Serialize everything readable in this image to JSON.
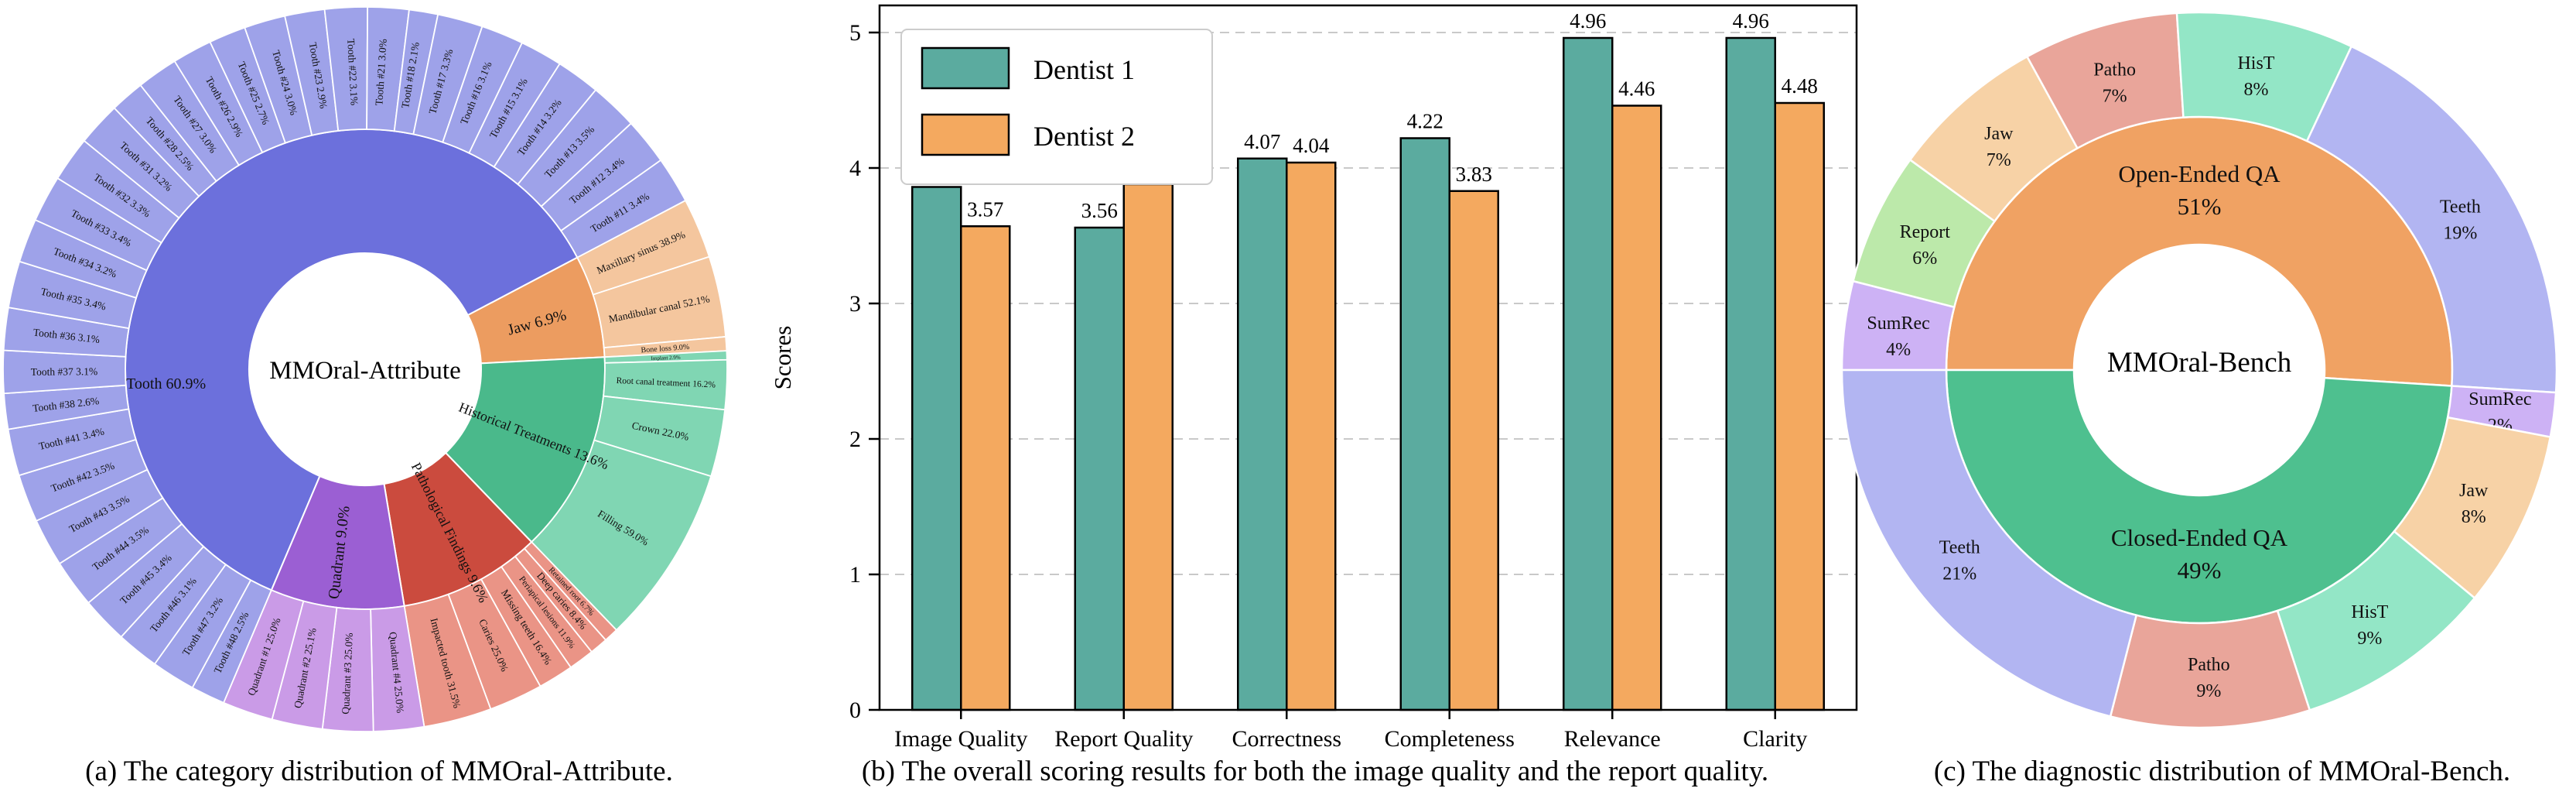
{
  "figure": {
    "captions": {
      "a": "(a) The category distribution of MMOral-Attribute.",
      "b": "(b) The overall scoring results for both the image quality and the report quality.",
      "c": "(c) The diagnostic distribution of MMOral-Bench."
    }
  },
  "chart_data": [
    {
      "id": "sunburst-attribute",
      "type": "pie",
      "subtype": "sunburst",
      "center_label": "MMOral-Attribute",
      "start_angle_deg": 203,
      "clockwise": true,
      "categories": [
        {
          "label": "Tooth",
          "pct": 60.9,
          "color": "#6C70DC",
          "child_color": "#9EA2E9",
          "children": [
            [
              "Tooth #48",
              2.5
            ],
            [
              "Tooth #47",
              3.2
            ],
            [
              "Tooth #46",
              3.1
            ],
            [
              "Tooth #45",
              3.4
            ],
            [
              "Tooth #44",
              3.5
            ],
            [
              "Tooth #43",
              3.5
            ],
            [
              "Tooth #42",
              3.5
            ],
            [
              "Tooth #41",
              3.4
            ],
            [
              "Tooth #38",
              2.6
            ],
            [
              "Tooth #37",
              3.1
            ],
            [
              "Tooth #36",
              3.1
            ],
            [
              "Tooth #35",
              3.4
            ],
            [
              "Tooth #34",
              3.2
            ],
            [
              "Tooth #33",
              3.4
            ],
            [
              "Tooth #32",
              3.3
            ],
            [
              "Tooth #31",
              3.2
            ],
            [
              "Tooth #28",
              2.5
            ],
            [
              "Tooth #27",
              3.0
            ],
            [
              "Tooth #26",
              2.9
            ],
            [
              "Tooth #25",
              2.7
            ],
            [
              "Tooth #24",
              3.0
            ],
            [
              "Tooth #23",
              2.9
            ],
            [
              "Tooth #22",
              3.1
            ],
            [
              "Tooth #21",
              3.0
            ],
            [
              "Tooth #18",
              2.1
            ],
            [
              "Tooth #17",
              3.3
            ],
            [
              "Tooth #16",
              3.1
            ],
            [
              "Tooth #15",
              3.1
            ],
            [
              "Tooth #14",
              3.2
            ],
            [
              "Tooth #13",
              3.5
            ],
            [
              "Tooth #12",
              3.4
            ],
            [
              "Tooth #11",
              3.4
            ]
          ]
        },
        {
          "label": "Jaw",
          "pct": 6.9,
          "color": "#EC9C60",
          "child_color": "#F4C69E",
          "children": [
            [
              "Maxillary sinus",
              38.9
            ],
            [
              "Mandibular canal",
              52.1
            ],
            [
              "Bone loss",
              9.0
            ]
          ]
        },
        {
          "label": "Historical Treatments",
          "pct": 13.6,
          "color": "#4AB98B",
          "child_color": "#80D6B3",
          "children": [
            [
              "Implant",
              2.9
            ],
            [
              "Root canal treatment",
              16.2
            ],
            [
              "Crown",
              22.0
            ],
            [
              "Filling",
              59.0
            ]
          ]
        },
        {
          "label": "Pathological Findings",
          "pct": 9.6,
          "color": "#CB4B3E",
          "child_color": "#EA9486",
          "children": [
            [
              "Retained root",
              6.7
            ],
            [
              "Deep caries",
              8.4
            ],
            [
              "Periapical lesions",
              11.9
            ],
            [
              "Missing teeth",
              16.4
            ],
            [
              "Caries",
              25.0
            ],
            [
              "Impacted tooth",
              31.5
            ]
          ]
        },
        {
          "label": "Quadrant",
          "pct": 9.0,
          "color": "#9B5FD3",
          "child_color": "#CA9BE7",
          "children": [
            [
              "Quadrant #4",
              25.0
            ],
            [
              "Quadrant #3",
              25.0
            ],
            [
              "Quadrant #2",
              25.1
            ],
            [
              "Quadrant #1",
              25.0
            ]
          ]
        }
      ]
    },
    {
      "id": "dentist-scores",
      "type": "bar",
      "categories": [
        "Image Quality",
        "Report Quality",
        "Correctness",
        "Completeness",
        "Relevance",
        "Clarity"
      ],
      "series": [
        {
          "name": "Dentist 1",
          "color": "#5BAB9F",
          "values": [
            3.86,
            3.56,
            4.07,
            4.22,
            4.96,
            4.96
          ]
        },
        {
          "name": "Dentist 2",
          "color": "#F4A95F",
          "values": [
            3.57,
            3.88,
            4.04,
            3.83,
            4.46,
            4.48
          ]
        }
      ],
      "ylabel": "Scores",
      "xlabel": "",
      "ylim": [
        0,
        5.2
      ],
      "yticks": [
        0,
        1,
        2,
        3,
        4,
        5
      ],
      "grid": "horizontal-dashed",
      "legend_position": "upper-left",
      "bar_edge_color": "#000000"
    },
    {
      "id": "donut-bench",
      "type": "pie",
      "subtype": "donut-two-ring",
      "center_label": "MMOral-Bench",
      "start_angle_deg": 270,
      "clockwise": true,
      "inner_ring": [
        {
          "label": "Open-Ended QA",
          "pct": 51,
          "color": "#F0A263"
        },
        {
          "label": "Closed-Ended QA",
          "pct": 49,
          "color": "#4EC08F"
        }
      ],
      "outer_ring": [
        {
          "label": "SumRec",
          "pct": 4,
          "color": "#CDB2F5"
        },
        {
          "label": "Report",
          "pct": 6,
          "color": "#BCE9AA"
        },
        {
          "label": "Jaw",
          "pct": 7,
          "color": "#F7D2A6"
        },
        {
          "label": "Patho",
          "pct": 7,
          "color": "#E9A59A"
        },
        {
          "label": "HisT",
          "pct": 8,
          "color": "#93E6C6"
        },
        {
          "label": "Teeth",
          "pct": 19,
          "color": "#B2B5F2"
        },
        {
          "label": "SumRec",
          "pct": 2,
          "color": "#CDB2F5"
        },
        {
          "label": "Jaw",
          "pct": 8,
          "color": "#F7D2A6"
        },
        {
          "label": "HisT",
          "pct": 9,
          "color": "#93E6C6"
        },
        {
          "label": "Patho",
          "pct": 9,
          "color": "#E9A59A"
        },
        {
          "label": "Teeth",
          "pct": 21,
          "color": "#B2B5F2"
        }
      ]
    }
  ]
}
